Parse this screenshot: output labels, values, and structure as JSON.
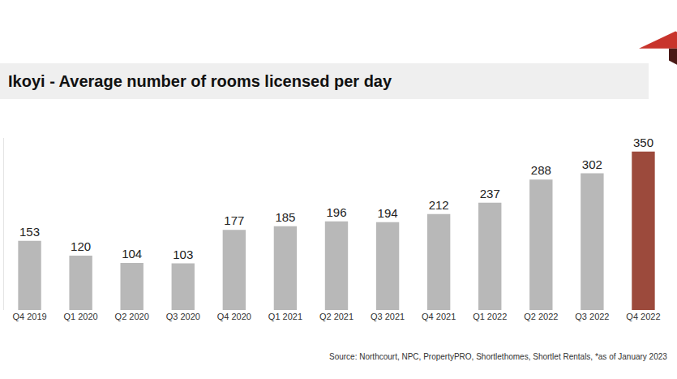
{
  "chart_data": {
    "type": "bar",
    "title": "Ikoyi - Average number of rooms licensed per day",
    "categories": [
      "Q4 2019",
      "Q1 2020",
      "Q2 2020",
      "Q3 2020",
      "Q4 2020",
      "Q1 2021",
      "Q2 2021",
      "Q3 2021",
      "Q4 2021",
      "Q1 2022",
      "Q2 2022",
      "Q3 2022",
      "Q4 2022"
    ],
    "values": [
      153,
      120,
      104,
      103,
      177,
      185,
      196,
      194,
      212,
      237,
      288,
      302,
      350
    ],
    "colors": [
      "#b8b8b8",
      "#b8b8b8",
      "#b8b8b8",
      "#b8b8b8",
      "#b8b8b8",
      "#b8b8b8",
      "#b8b8b8",
      "#b8b8b8",
      "#b8b8b8",
      "#b8b8b8",
      "#b8b8b8",
      "#b8b8b8",
      "#9c4a3c"
    ],
    "ylim": [
      0,
      380
    ],
    "grid": false,
    "data_labels": true,
    "tick_labels": "x",
    "annotations": [
      "Source: Northcourt, NPC, PropertyPRO, Shortlethomes, Shortlet Rentals, *as of January 2023"
    ]
  }
}
